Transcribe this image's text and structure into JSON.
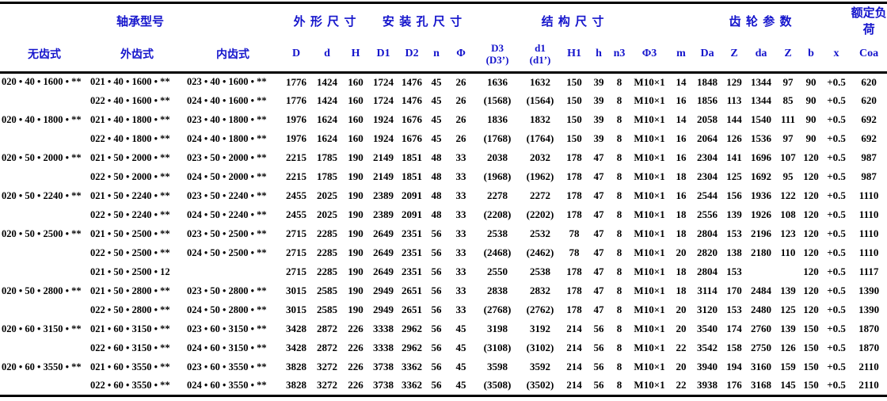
{
  "colors": {
    "header_text": "#1414cc",
    "body_text": "#000000",
    "rule": "#000000",
    "background": "#ffffff"
  },
  "table": {
    "groups": [
      {
        "key": "bearing-model",
        "label": "轴承型号",
        "span": 3,
        "spaced": false
      },
      {
        "key": "outline-dimensions",
        "label": "外形尺寸",
        "span": 3,
        "spaced": true
      },
      {
        "key": "mounting-hole-dimensions",
        "label": "安装孔尺寸",
        "span": 4,
        "spaced": true
      },
      {
        "key": "structure-dimensions",
        "label": "结构尺寸",
        "span": 6,
        "spaced": true
      },
      {
        "key": "gear-parameters",
        "label": "齿轮参数",
        "span": 7,
        "spaced": true
      },
      {
        "key": "rated-load",
        "label": "额定负荷",
        "span": 1,
        "spaced": false
      }
    ],
    "columns": [
      {
        "key": "plain-type",
        "label": "无齿式"
      },
      {
        "key": "external-gear-type",
        "label": "外齿式"
      },
      {
        "key": "internal-gear-type",
        "label": "内齿式"
      },
      {
        "key": "D",
        "label": "D"
      },
      {
        "key": "d",
        "label": "d"
      },
      {
        "key": "H",
        "label": "H"
      },
      {
        "key": "D1",
        "label": "D1"
      },
      {
        "key": "D2",
        "label": "D2"
      },
      {
        "key": "n",
        "label": "n"
      },
      {
        "key": "phi",
        "label": "Φ"
      },
      {
        "key": "D3",
        "label": "D3\n(D3’)"
      },
      {
        "key": "d1",
        "label": "d1\n(d1’)"
      },
      {
        "key": "H1",
        "label": "H1"
      },
      {
        "key": "h",
        "label": "h"
      },
      {
        "key": "n3",
        "label": "n3"
      },
      {
        "key": "phi3",
        "label": "Φ3"
      },
      {
        "key": "m",
        "label": "m"
      },
      {
        "key": "Da",
        "label": "Da"
      },
      {
        "key": "Z",
        "label": "Z"
      },
      {
        "key": "da",
        "label": "da"
      },
      {
        "key": "Z2",
        "label": "Z"
      },
      {
        "key": "b",
        "label": "b"
      },
      {
        "key": "x",
        "label": "x"
      },
      {
        "key": "Coa",
        "label": "Coa"
      }
    ],
    "rows": [
      [
        "020 • 40 • 1600 • **",
        "021 • 40 • 1600 • **",
        "023 • 40 • 1600 • **",
        "1776",
        "1424",
        "160",
        "1724",
        "1476",
        "45",
        "26",
        "1636",
        "1632",
        "150",
        "39",
        "8",
        "M10×1",
        "14",
        "1848",
        "129",
        "1344",
        "97",
        "90",
        "+0.5",
        "620"
      ],
      [
        "",
        "022 • 40 • 1600 • **",
        "024 • 40 • 1600 • **",
        "1776",
        "1424",
        "160",
        "1724",
        "1476",
        "45",
        "26",
        "(1568)",
        "(1564)",
        "150",
        "39",
        "8",
        "M10×1",
        "16",
        "1856",
        "113",
        "1344",
        "85",
        "90",
        "+0.5",
        "620"
      ],
      [
        "020 • 40 • 1800 • **",
        "021 • 40 • 1800 • **",
        "023 • 40 • 1800 • **",
        "1976",
        "1624",
        "160",
        "1924",
        "1676",
        "45",
        "26",
        "1836",
        "1832",
        "150",
        "39",
        "8",
        "M10×1",
        "14",
        "2058",
        "144",
        "1540",
        "111",
        "90",
        "+0.5",
        "692"
      ],
      [
        "",
        "022 • 40 • 1800 • **",
        "024 • 40 • 1800 • **",
        "1976",
        "1624",
        "160",
        "1924",
        "1676",
        "45",
        "26",
        "(1768)",
        "(1764)",
        "150",
        "39",
        "8",
        "M10×1",
        "16",
        "2064",
        "126",
        "1536",
        "97",
        "90",
        "+0.5",
        "692"
      ],
      [
        "020 • 50 • 2000 • **",
        "021 • 50 • 2000 • **",
        "023 • 50 • 2000 • **",
        "2215",
        "1785",
        "190",
        "2149",
        "1851",
        "48",
        "33",
        "2038",
        "2032",
        "178",
        "47",
        "8",
        "M10×1",
        "16",
        "2304",
        "141",
        "1696",
        "107",
        "120",
        "+0.5",
        "987"
      ],
      [
        "",
        "022 • 50 • 2000 • **",
        "024 • 50 • 2000 • **",
        "2215",
        "1785",
        "190",
        "2149",
        "1851",
        "48",
        "33",
        "(1968)",
        "(1962)",
        "178",
        "47",
        "8",
        "M10×1",
        "18",
        "2304",
        "125",
        "1692",
        "95",
        "120",
        "+0.5",
        "987"
      ],
      [
        "020 • 50 • 2240 • **",
        "021 • 50 • 2240 • **",
        "023 • 50 • 2240 • **",
        "2455",
        "2025",
        "190",
        "2389",
        "2091",
        "48",
        "33",
        "2278",
        "2272",
        "178",
        "47",
        "8",
        "M10×1",
        "16",
        "2544",
        "156",
        "1936",
        "122",
        "120",
        "+0.5",
        "1110"
      ],
      [
        "",
        "022 • 50 • 2240 • **",
        "024 • 50 • 2240 • **",
        "2455",
        "2025",
        "190",
        "2389",
        "2091",
        "48",
        "33",
        "(2208)",
        "(2202)",
        "178",
        "47",
        "8",
        "M10×1",
        "18",
        "2556",
        "139",
        "1926",
        "108",
        "120",
        "+0.5",
        "1110"
      ],
      [
        "020 • 50 • 2500 • **",
        "021 • 50 • 2500 • **",
        "023 • 50 • 2500 • **",
        "2715",
        "2285",
        "190",
        "2649",
        "2351",
        "56",
        "33",
        "2538",
        "2532",
        "78",
        "47",
        "8",
        "M10×1",
        "18",
        "2804",
        "153",
        "2196",
        "123",
        "120",
        "+0.5",
        "1110"
      ],
      [
        "",
        "022 • 50 • 2500 • **",
        "024 • 50 • 2500 • **",
        "2715",
        "2285",
        "190",
        "2649",
        "2351",
        "56",
        "33",
        "(2468)",
        "(2462)",
        "78",
        "47",
        "8",
        "M10×1",
        "20",
        "2820",
        "138",
        "2180",
        "110",
        "120",
        "+0.5",
        "1110"
      ],
      [
        "",
        "021 • 50 • 2500 • 12",
        "",
        "2715",
        "2285",
        "190",
        "2649",
        "2351",
        "56",
        "33",
        "2550",
        "2538",
        "178",
        "47",
        "8",
        "M10×1",
        "18",
        "2804",
        "153",
        "",
        "",
        "120",
        "+0.5",
        "1117"
      ],
      [
        "020 • 50 • 2800 • **",
        "021 • 50 • 2800 • **",
        "023 • 50 • 2800 • **",
        "3015",
        "2585",
        "190",
        "2949",
        "2651",
        "56",
        "33",
        "2838",
        "2832",
        "178",
        "47",
        "8",
        "M10×1",
        "18",
        "3114",
        "170",
        "2484",
        "139",
        "120",
        "+0.5",
        "1390"
      ],
      [
        "",
        "022 • 50 • 2800 • **",
        "024 • 50 • 2800 • **",
        "3015",
        "2585",
        "190",
        "2949",
        "2651",
        "56",
        "33",
        "(2768)",
        "(2762)",
        "178",
        "47",
        "8",
        "M10×1",
        "20",
        "3120",
        "153",
        "2480",
        "125",
        "120",
        "+0.5",
        "1390"
      ],
      [
        "020 • 60 • 3150 • **",
        "021 • 60 • 3150 • **",
        "023 • 60 • 3150 • **",
        "3428",
        "2872",
        "226",
        "3338",
        "2962",
        "56",
        "45",
        "3198",
        "3192",
        "214",
        "56",
        "8",
        "M10×1",
        "20",
        "3540",
        "174",
        "2760",
        "139",
        "150",
        "+0.5",
        "1870"
      ],
      [
        "",
        "022 • 60 • 3150 • **",
        "024 • 60 • 3150 • **",
        "3428",
        "2872",
        "226",
        "3338",
        "2962",
        "56",
        "45",
        "(3108)",
        "(3102)",
        "214",
        "56",
        "8",
        "M10×1",
        "22",
        "3542",
        "158",
        "2750",
        "126",
        "150",
        "+0.5",
        "1870"
      ],
      [
        "020 • 60 • 3550 • **",
        "021 • 60 • 3550 • **",
        "023 • 60 • 3550 • **",
        "3828",
        "3272",
        "226",
        "3738",
        "3362",
        "56",
        "45",
        "3598",
        "3592",
        "214",
        "56",
        "8",
        "M10×1",
        "20",
        "3940",
        "194",
        "3160",
        "159",
        "150",
        "+0.5",
        "2110"
      ],
      [
        "",
        "022 • 60 • 3550 • **",
        "024 • 60 • 3550 • **",
        "3828",
        "3272",
        "226",
        "3738",
        "3362",
        "56",
        "45",
        "(3508)",
        "(3502)",
        "214",
        "56",
        "8",
        "M10×1",
        "22",
        "3938",
        "176",
        "3168",
        "145",
        "150",
        "+0.5",
        "2110"
      ]
    ]
  }
}
